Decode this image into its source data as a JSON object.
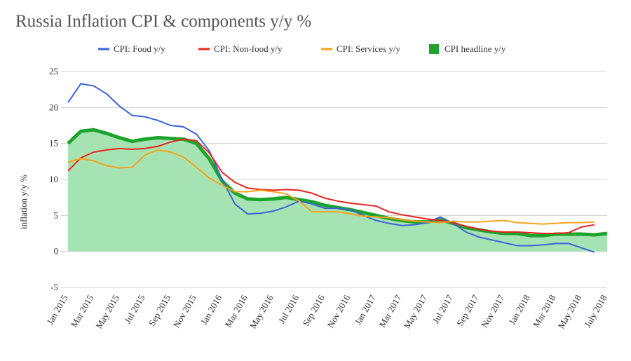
{
  "chart_data": {
    "type": "line",
    "title": "Russia Inflation CPI & components y/y %",
    "y_label": "inflation y/y %",
    "categories": [
      "Jan 2015",
      null,
      "Mar 2015",
      null,
      "May 2015",
      null,
      "Jul 2015",
      null,
      "Sep 2015",
      null,
      "Nov 2015",
      null,
      "Jan 2016",
      null,
      "Mar 2016",
      null,
      "May 2016",
      null,
      "Jul 2016",
      null,
      "Sep 2016",
      null,
      "Nov 2016",
      null,
      "Jan 2017",
      null,
      "Mar 2017",
      null,
      "May 2017",
      null,
      "Jul 2017",
      null,
      "Sep 2017",
      null,
      "Nov 2017",
      null,
      "Jan 2018",
      null,
      "Mar 2018",
      null,
      "May 2018",
      null,
      "July 2018"
    ],
    "series": [
      {
        "name": "CPI: Food y/y",
        "color": "#3b63d8",
        "width": 2,
        "values": [
          20.7,
          23.3,
          23.0,
          21.9,
          20.2,
          18.9,
          18.7,
          18.2,
          17.5,
          17.3,
          16.3,
          14.0,
          10.0,
          6.6,
          5.2,
          5.3,
          5.6,
          6.2,
          7.0,
          6.6,
          6.0,
          6.0,
          5.8,
          5.0,
          4.3,
          3.9,
          3.6,
          3.7,
          4.0,
          4.8,
          3.9,
          2.7,
          2.0,
          1.6,
          1.2,
          0.8,
          0.8,
          0.9,
          1.1,
          1.1,
          0.5,
          -0.1,
          null
        ]
      },
      {
        "name": "CPI: Non-food y/y",
        "color": "#e8241c",
        "width": 2,
        "values": [
          11.2,
          13.0,
          13.8,
          14.1,
          14.3,
          14.2,
          14.3,
          14.6,
          15.2,
          15.6,
          15.4,
          13.7,
          11.0,
          9.6,
          8.8,
          8.6,
          8.5,
          8.6,
          8.5,
          8.1,
          7.4,
          7.0,
          6.7,
          6.5,
          6.3,
          5.5,
          5.1,
          4.8,
          4.5,
          4.3,
          4.0,
          3.5,
          3.1,
          2.8,
          2.7,
          2.7,
          2.6,
          2.5,
          2.5,
          2.6,
          3.4,
          3.7,
          null
        ]
      },
      {
        "name": "CPI: Services y/y",
        "color": "#f7a21b",
        "width": 2,
        "values": [
          12.4,
          12.9,
          12.6,
          11.9,
          11.6,
          11.7,
          13.4,
          14.1,
          13.8,
          13.1,
          11.7,
          10.2,
          9.2,
          8.3,
          8.3,
          8.5,
          8.3,
          8.0,
          7.0,
          5.5,
          5.5,
          5.5,
          5.2,
          4.9,
          4.8,
          4.7,
          4.4,
          4.2,
          4.1,
          4.0,
          4.2,
          4.1,
          4.1,
          4.2,
          4.3,
          4.0,
          3.9,
          3.8,
          3.9,
          4.0,
          4.0,
          4.1,
          null
        ]
      },
      {
        "name": "CPI headline  y/y",
        "color": "#1ea32e",
        "width": 5,
        "area_color": "#a6e3b3",
        "values": [
          15.0,
          16.7,
          16.9,
          16.4,
          15.8,
          15.3,
          15.6,
          15.8,
          15.7,
          15.6,
          15.0,
          12.9,
          9.8,
          8.1,
          7.3,
          7.2,
          7.3,
          7.5,
          7.2,
          6.9,
          6.4,
          6.1,
          5.8,
          5.4,
          5.0,
          4.6,
          4.3,
          4.1,
          4.1,
          4.4,
          3.9,
          3.3,
          3.0,
          2.7,
          2.5,
          2.5,
          2.2,
          2.2,
          2.4,
          2.4,
          2.4,
          2.3,
          2.5
        ]
      }
    ],
    "ylim": [
      -5,
      25
    ],
    "yticks": [
      -5,
      0,
      5,
      10,
      15,
      20,
      25
    ],
    "grid": true
  }
}
